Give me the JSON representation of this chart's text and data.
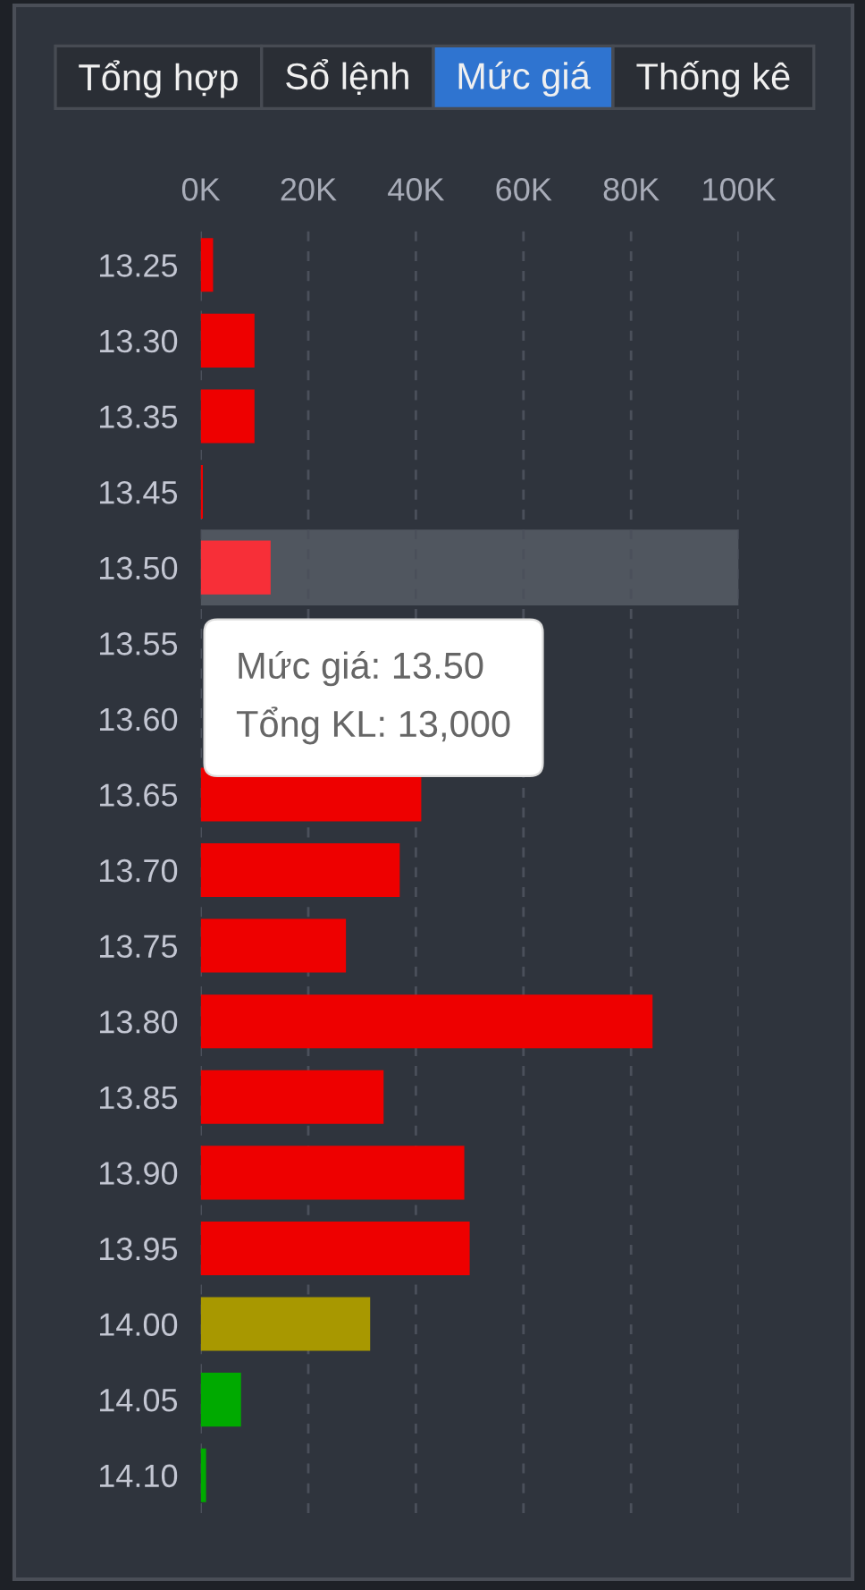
{
  "chart_data": {
    "type": "bar",
    "orientation": "horizontal",
    "categories": [
      "13.25",
      "13.30",
      "13.35",
      "13.45",
      "13.50",
      "13.55",
      "13.60",
      "13.65",
      "13.70",
      "13.75",
      "13.80",
      "13.85",
      "13.90",
      "13.95",
      "14.00",
      "14.05",
      "14.10"
    ],
    "values": [
      2300,
      10000,
      10000,
      400,
      13000,
      null,
      null,
      41000,
      37000,
      27000,
      84000,
      34000,
      49000,
      50000,
      31500,
      7500,
      1000
    ],
    "colors": [
      "#ee0000",
      "#ee0000",
      "#ee0000",
      "#ee0000",
      "#f72f38",
      "#ee0000",
      "#ee0000",
      "#ee0000",
      "#ee0000",
      "#ee0000",
      "#ee0000",
      "#ee0000",
      "#ee0000",
      "#ee0000",
      "#a89800",
      "#00aa00",
      "#00aa00"
    ],
    "xlim": [
      0,
      100000
    ],
    "xticks": [
      {
        "value": 0,
        "label": "0K"
      },
      {
        "value": 20000,
        "label": "20K"
      },
      {
        "value": 40000,
        "label": "40K"
      },
      {
        "value": 60000,
        "label": "60K"
      },
      {
        "value": 80000,
        "label": "80K"
      },
      {
        "value": 100000,
        "label": "100K"
      }
    ],
    "grid": "x",
    "bands": [
      {
        "axis": "y",
        "from": "13.50",
        "to": "13.50",
        "color": "#50565f"
      }
    ],
    "annotations": [
      "Tổng hợp",
      "Sổ lệnh",
      "Mức giá",
      "Thống kê",
      "Mức giá: 13.50\nTổng KL: 13,000"
    ]
  }
}
